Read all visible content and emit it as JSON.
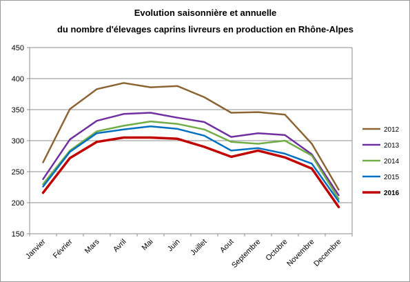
{
  "chart_data": {
    "type": "line",
    "title_lines": [
      "Evolution saisonnière et annuelle",
      "du nombre d'élevages caprins livreurs en production en Rhône-Alpes"
    ],
    "xlabel": "",
    "ylabel": "",
    "ylim": [
      150,
      450
    ],
    "y_ticks": [
      "150",
      "200",
      "250",
      "300",
      "350",
      "400",
      "450"
    ],
    "grid": true,
    "legend_position": "right",
    "categories": [
      "Janvier",
      "Février",
      "Mars",
      "Avril",
      "Mai",
      "Juin",
      "Juillet",
      "Aout",
      "Septembre",
      "Octobre",
      "Novembre",
      "Decembre"
    ],
    "series": [
      {
        "name": "2012",
        "color": "#8B6434",
        "bold": false,
        "values": [
          265,
          351,
          383,
          393,
          386,
          388,
          370,
          345,
          346,
          342,
          295,
          221
        ]
      },
      {
        "name": "2013",
        "color": "#7030A0",
        "bold": false,
        "values": [
          238,
          302,
          332,
          343,
          345,
          337,
          330,
          306,
          312,
          309,
          278,
          212
        ]
      },
      {
        "name": "2014",
        "color": "#70AD47",
        "bold": false,
        "values": [
          230,
          284,
          315,
          324,
          331,
          327,
          318,
          298,
          295,
          300,
          276,
          206
        ]
      },
      {
        "name": "2015",
        "color": "#0070C0",
        "bold": false,
        "values": [
          226,
          282,
          312,
          318,
          323,
          319,
          308,
          284,
          288,
          279,
          263,
          202
        ]
      },
      {
        "name": "2016",
        "color": "#C00000",
        "bold": true,
        "values": [
          216,
          272,
          298,
          305,
          305,
          303,
          290,
          274,
          284,
          273,
          255,
          193
        ]
      }
    ]
  }
}
